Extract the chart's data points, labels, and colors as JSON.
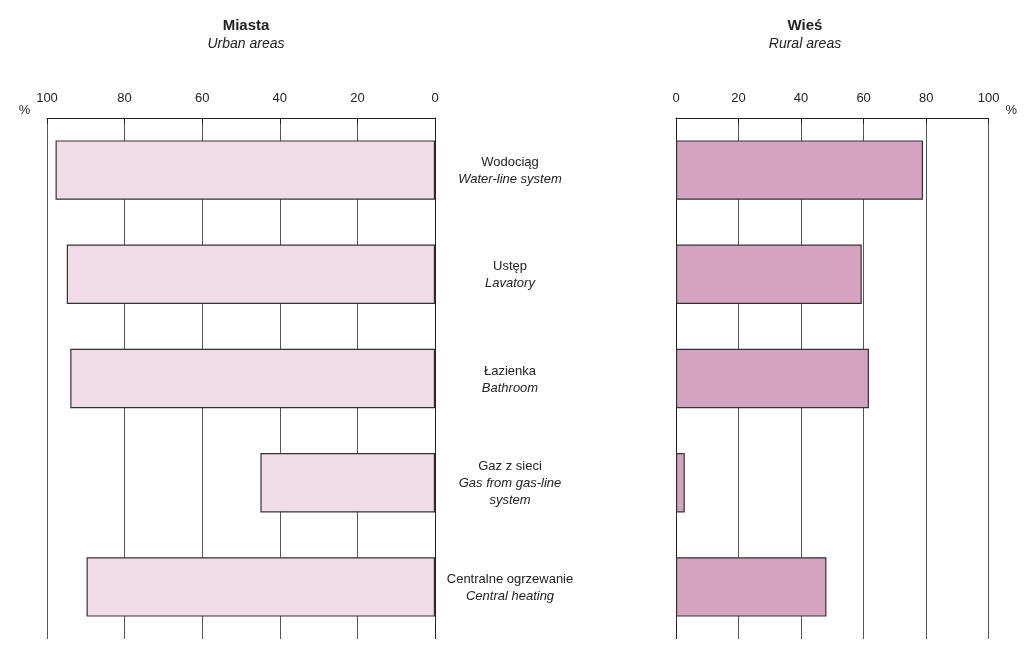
{
  "chart_data": [
    {
      "type": "bar",
      "orientation": "horizontal",
      "title": "Miasta",
      "subtitle": "Urban areas",
      "xlabel": "%",
      "categories": [
        "Wodociąg\nWater-line system",
        "Ustęp\nLavatory",
        "Łazienka\nBathroom",
        "Gaz z sieci\nGas from gas-line\nsystem",
        "Centralne ogrzewanie\nCentral heating"
      ],
      "values": [
        97.8,
        94.9,
        94.0,
        45,
        89.8
      ],
      "color": "#f0dce7",
      "xlim": [
        100,
        0
      ],
      "xticks": [
        100,
        80,
        60,
        40,
        20,
        0
      ],
      "grid": "x"
    },
    {
      "type": "bar",
      "orientation": "horizontal",
      "title": "Wieś",
      "subtitle": "Rural areas",
      "xlabel": "%",
      "categories": [
        null,
        null,
        null,
        null,
        null
      ],
      "values": [
        79.0,
        59.4,
        61.7,
        2.8,
        48.1
      ],
      "color": "#d4a3bf",
      "xlim": [
        0,
        100
      ],
      "xticks": [
        0,
        20,
        40,
        60,
        80,
        100
      ],
      "grid": "x"
    }
  ]
}
